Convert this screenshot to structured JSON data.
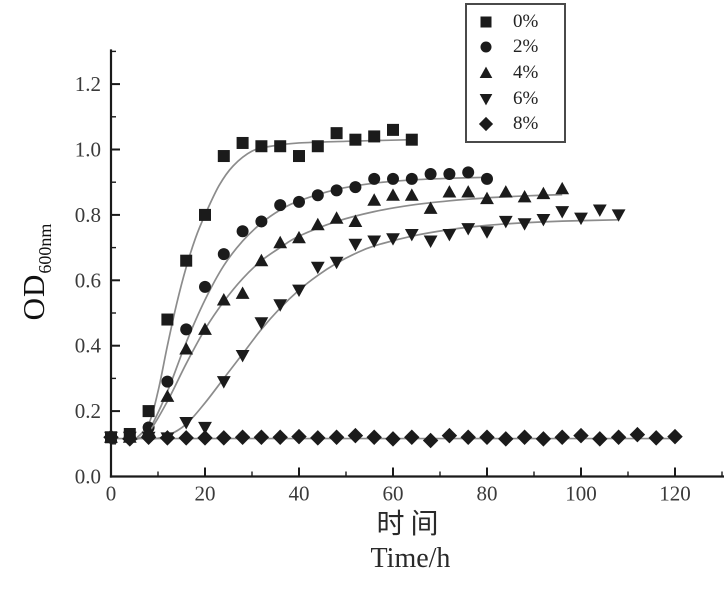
{
  "figure": {
    "background": "#ffffff",
    "axis_color": "#1a1a1a",
    "tick_label_color": "#3a3a3a",
    "marker_color": "#1b1b1b",
    "fit_line_color": "#8c8c8c",
    "legend_border_color": "#4a4a4a"
  },
  "axes": {
    "y_title_main": "OD",
    "y_title_sub": "600nm",
    "x_title_primary": "时间",
    "x_title_secondary": "Time/h"
  },
  "chart_data": {
    "type": "scatter",
    "title": "",
    "xlabel": "时间 Time/h",
    "ylabel": "OD600nm",
    "xlim": [
      0,
      130
    ],
    "ylim": [
      0,
      1.3
    ],
    "grid": false,
    "legend_position": "top-right",
    "x_major_ticks": [
      {
        "v": 0,
        "label": "0"
      },
      {
        "v": 20,
        "label": "20"
      },
      {
        "v": 40,
        "label": "40"
      },
      {
        "v": 60,
        "label": "60"
      },
      {
        "v": 80,
        "label": "80"
      },
      {
        "v": 100,
        "label": "100"
      },
      {
        "v": 120,
        "label": "120"
      }
    ],
    "x_minor_ticks": [
      10,
      30,
      50,
      70,
      90,
      110,
      130
    ],
    "y_major_ticks": [
      {
        "v": 0.0,
        "label": "0.0"
      },
      {
        "v": 0.2,
        "label": "0.2"
      },
      {
        "v": 0.4,
        "label": "0.4"
      },
      {
        "v": 0.6,
        "label": "0.6"
      },
      {
        "v": 0.8,
        "label": "0.8"
      },
      {
        "v": 1.0,
        "label": "1.0"
      },
      {
        "v": 1.2,
        "label": "1.2"
      }
    ],
    "y_minor_ticks": [
      0.1,
      0.3,
      0.5,
      0.7,
      0.9,
      1.1,
      1.3
    ],
    "series": [
      {
        "name": "0%",
        "marker": "square",
        "x": [
          0,
          4,
          8,
          12,
          16,
          20,
          24,
          28,
          32,
          36,
          40,
          44,
          48,
          52,
          56,
          60,
          64
        ],
        "y": [
          0.12,
          0.13,
          0.2,
          0.48,
          0.66,
          0.8,
          0.98,
          1.02,
          1.01,
          1.01,
          0.98,
          1.01,
          1.05,
          1.03,
          1.04,
          1.06,
          1.03
        ],
        "fit": [
          [
            5,
            0.112
          ],
          [
            8,
            0.16
          ],
          [
            10,
            0.26
          ],
          [
            12,
            0.4
          ],
          [
            14,
            0.53
          ],
          [
            16,
            0.64
          ],
          [
            18,
            0.73
          ],
          [
            20,
            0.8
          ],
          [
            23,
            0.89
          ],
          [
            26,
            0.95
          ],
          [
            30,
            0.995
          ],
          [
            34,
            1.01
          ],
          [
            40,
            1.02
          ],
          [
            50,
            1.025
          ],
          [
            64,
            1.03
          ]
        ]
      },
      {
        "name": "2%",
        "marker": "circle",
        "x": [
          0,
          4,
          8,
          12,
          16,
          20,
          24,
          28,
          32,
          36,
          40,
          44,
          48,
          52,
          56,
          60,
          64,
          68,
          72,
          76,
          80
        ],
        "y": [
          0.12,
          0.12,
          0.15,
          0.29,
          0.45,
          0.58,
          0.68,
          0.75,
          0.78,
          0.83,
          0.84,
          0.86,
          0.875,
          0.885,
          0.91,
          0.91,
          0.91,
          0.925,
          0.925,
          0.93,
          0.91
        ],
        "fit": [
          [
            5,
            0.112
          ],
          [
            8,
            0.14
          ],
          [
            12,
            0.26
          ],
          [
            16,
            0.41
          ],
          [
            20,
            0.54
          ],
          [
            24,
            0.645
          ],
          [
            28,
            0.72
          ],
          [
            32,
            0.775
          ],
          [
            36,
            0.815
          ],
          [
            40,
            0.843
          ],
          [
            48,
            0.878
          ],
          [
            56,
            0.897
          ],
          [
            64,
            0.907
          ],
          [
            72,
            0.912
          ],
          [
            80,
            0.915
          ]
        ]
      },
      {
        "name": "4%",
        "marker": "triangle-up",
        "x": [
          0,
          4,
          8,
          12,
          16,
          20,
          24,
          28,
          32,
          36,
          40,
          44,
          48,
          52,
          56,
          60,
          64,
          68,
          72,
          76,
          80,
          84,
          88,
          92,
          96
        ],
        "y": [
          0.12,
          0.12,
          0.14,
          0.245,
          0.39,
          0.45,
          0.54,
          0.56,
          0.66,
          0.715,
          0.73,
          0.77,
          0.79,
          0.78,
          0.845,
          0.86,
          0.86,
          0.82,
          0.87,
          0.87,
          0.85,
          0.87,
          0.855,
          0.865,
          0.88
        ],
        "fit": [
          [
            5,
            0.112
          ],
          [
            8,
            0.135
          ],
          [
            12,
            0.23
          ],
          [
            16,
            0.345
          ],
          [
            20,
            0.45
          ],
          [
            24,
            0.535
          ],
          [
            28,
            0.605
          ],
          [
            32,
            0.66
          ],
          [
            36,
            0.7
          ],
          [
            40,
            0.735
          ],
          [
            48,
            0.78
          ],
          [
            56,
            0.81
          ],
          [
            64,
            0.83
          ],
          [
            72,
            0.843
          ],
          [
            80,
            0.852
          ],
          [
            88,
            0.858
          ],
          [
            96,
            0.862
          ]
        ]
      },
      {
        "name": "6%",
        "marker": "triangle-down",
        "x": [
          0,
          4,
          8,
          12,
          16,
          20,
          24,
          28,
          32,
          36,
          40,
          44,
          48,
          52,
          56,
          60,
          64,
          68,
          72,
          76,
          80,
          84,
          88,
          92,
          96,
          100,
          104,
          108
        ],
        "y": [
          0.12,
          0.12,
          0.12,
          0.118,
          0.165,
          0.15,
          0.29,
          0.37,
          0.47,
          0.525,
          0.57,
          0.64,
          0.655,
          0.71,
          0.72,
          0.727,
          0.74,
          0.72,
          0.74,
          0.758,
          0.748,
          0.78,
          0.773,
          0.786,
          0.81,
          0.79,
          0.815,
          0.8
        ],
        "fit": [
          [
            8,
            0.112
          ],
          [
            12,
            0.125
          ],
          [
            16,
            0.16
          ],
          [
            20,
            0.225
          ],
          [
            24,
            0.3
          ],
          [
            28,
            0.375
          ],
          [
            32,
            0.45
          ],
          [
            36,
            0.515
          ],
          [
            40,
            0.57
          ],
          [
            44,
            0.615
          ],
          [
            48,
            0.652
          ],
          [
            52,
            0.682
          ],
          [
            56,
            0.705
          ],
          [
            64,
            0.735
          ],
          [
            72,
            0.755
          ],
          [
            80,
            0.768
          ],
          [
            88,
            0.776
          ],
          [
            96,
            0.781
          ],
          [
            108,
            0.785
          ]
        ]
      },
      {
        "name": "8%",
        "marker": "diamond",
        "x": [
          0,
          4,
          8,
          12,
          16,
          20,
          24,
          28,
          32,
          36,
          40,
          44,
          48,
          52,
          56,
          60,
          64,
          68,
          72,
          76,
          80,
          84,
          88,
          92,
          96,
          100,
          104,
          108,
          112,
          116,
          120
        ],
        "y": [
          0.12,
          0.115,
          0.12,
          0.118,
          0.118,
          0.118,
          0.118,
          0.12,
          0.12,
          0.12,
          0.122,
          0.118,
          0.12,
          0.125,
          0.12,
          0.115,
          0.12,
          0.11,
          0.125,
          0.12,
          0.12,
          0.115,
          0.12,
          0.115,
          0.12,
          0.125,
          0.115,
          0.12,
          0.128,
          0.118,
          0.122
        ],
        "fit": [
          [
            0,
            0.116
          ],
          [
            120,
            0.116
          ]
        ]
      }
    ]
  }
}
